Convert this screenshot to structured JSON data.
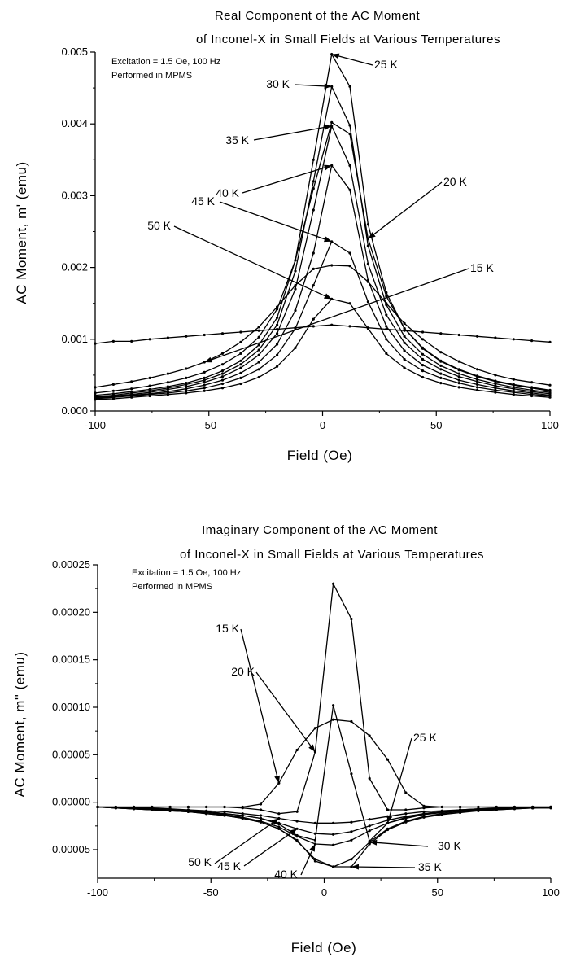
{
  "chart_data": [
    {
      "type": "line",
      "title": "Real Component of the AC Moment",
      "subtitle": "of Inconel-X in Small Fields at Various Temperatures",
      "annotations": [
        "Excitation = 1.5 Oe, 100 Hz",
        "Performed in MPMS"
      ],
      "xlabel": "Field (Oe)",
      "ylabel": "AC Moment, m' (emu)",
      "xlim": [
        -100,
        100
      ],
      "ylim": [
        0,
        0.005
      ],
      "xticks": [
        "-100",
        "-50",
        "0",
        "50",
        "100"
      ],
      "yticks": [
        "0.000",
        "0.001",
        "0.002",
        "0.003",
        "0.004",
        "0.005"
      ],
      "x": [
        -100,
        -92,
        -84,
        -76,
        -68,
        -60,
        -52,
        -44,
        -36,
        -28,
        -20,
        -12,
        -4,
        4,
        12,
        20,
        28,
        36,
        44,
        52,
        60,
        68,
        76,
        84,
        92,
        100
      ],
      "series": [
        {
          "name": "15 K",
          "label": "15 K",
          "values": [
            0.00033,
            0.00037,
            0.00041,
            0.00046,
            0.00052,
            0.00059,
            0.00068,
            0.0008,
            0.00096,
            0.00117,
            0.00145,
            0.00175,
            0.00198,
            0.00203,
            0.00202,
            0.0018,
            0.0015,
            0.00122,
            0.001,
            0.00082,
            0.00069,
            0.00058,
            0.0005,
            0.00044,
            0.0004,
            0.00036
          ]
        },
        {
          "name": "20 K",
          "label": "20 K",
          "values": [
            0.00025,
            0.00028,
            0.00031,
            0.00035,
            0.0004,
            0.00046,
            0.00054,
            0.00065,
            0.0008,
            0.00103,
            0.00142,
            0.0021,
            0.0031,
            0.00402,
            0.00386,
            0.0024,
            0.0016,
            0.00115,
            0.00088,
            0.0007,
            0.00058,
            0.00049,
            0.00042,
            0.00037,
            0.00033,
            0.00029
          ]
        },
        {
          "name": "25 K",
          "label": "25 K",
          "values": [
            0.00022,
            0.00024,
            0.00027,
            0.0003,
            0.00034,
            0.00039,
            0.00046,
            0.00056,
            0.0007,
            0.00092,
            0.0013,
            0.0021,
            0.0035,
            0.00497,
            0.00452,
            0.0026,
            0.00165,
            0.00115,
            0.00087,
            0.00069,
            0.00057,
            0.00048,
            0.00041,
            0.00036,
            0.00032,
            0.00028
          ]
        },
        {
          "name": "30 K",
          "label": "30 K",
          "values": [
            0.0002,
            0.00022,
            0.00025,
            0.00028,
            0.00032,
            0.00037,
            0.00043,
            0.00052,
            0.00065,
            0.00085,
            0.0012,
            0.00195,
            0.0032,
            0.00452,
            0.00398,
            0.0023,
            0.00148,
            0.00104,
            0.00079,
            0.00063,
            0.00052,
            0.00044,
            0.00038,
            0.00033,
            0.00029,
            0.00026
          ]
        },
        {
          "name": "35 K",
          "label": "35 K",
          "values": [
            0.00019,
            0.00021,
            0.00023,
            0.00026,
            0.0003,
            0.00034,
            0.0004,
            0.00048,
            0.0006,
            0.00078,
            0.00108,
            0.0017,
            0.0028,
            0.00397,
            0.00342,
            0.00205,
            0.00134,
            0.00095,
            0.00072,
            0.00058,
            0.00048,
            0.00041,
            0.00035,
            0.00031,
            0.00027,
            0.00024
          ]
        },
        {
          "name": "40 K",
          "label": "40 K",
          "values": [
            0.00018,
            0.0002,
            0.00022,
            0.00024,
            0.00027,
            0.00031,
            0.00036,
            0.00043,
            0.00053,
            0.00068,
            0.00093,
            0.0014,
            0.0022,
            0.00342,
            0.00308,
            0.00182,
            0.00118,
            0.00084,
            0.00064,
            0.00052,
            0.00043,
            0.00037,
            0.00032,
            0.00028,
            0.00025,
            0.00022
          ]
        },
        {
          "name": "45 K",
          "label": "45 K",
          "values": [
            0.00017,
            0.00019,
            0.00021,
            0.00023,
            0.00025,
            0.00028,
            0.00032,
            0.00038,
            0.00046,
            0.00058,
            0.00078,
            0.00115,
            0.00175,
            0.00236,
            0.0022,
            0.00152,
            0.001,
            0.00072,
            0.00056,
            0.00046,
            0.00039,
            0.00033,
            0.00029,
            0.00026,
            0.00023,
            0.00021
          ]
        },
        {
          "name": "50 K",
          "label": "50 K",
          "values": [
            0.00016,
            0.00017,
            0.00019,
            0.00021,
            0.00023,
            0.00025,
            0.00028,
            0.00032,
            0.00038,
            0.00047,
            0.00062,
            0.00088,
            0.00128,
            0.00156,
            0.0015,
            0.00115,
            0.0008,
            0.0006,
            0.00047,
            0.00039,
            0.00033,
            0.00029,
            0.00026,
            0.00023,
            0.00021,
            0.00019
          ]
        },
        {
          "name": "",
          "label": "",
          "values": [
            0.00094,
            0.00097,
            0.00097,
            0.001,
            0.00102,
            0.00104,
            0.00106,
            0.00108,
            0.0011,
            0.00112,
            0.00114,
            0.00116,
            0.00118,
            0.0012,
            0.00118,
            0.00116,
            0.00114,
            0.00112,
            0.0011,
            0.00108,
            0.00106,
            0.00104,
            0.00102,
            0.001,
            0.00098,
            0.00096
          ]
        }
      ],
      "series_colors": [
        "#000000"
      ],
      "grid": false
    },
    {
      "type": "line",
      "title": "Imaginary Component of the AC Moment",
      "subtitle": "of Inconel-X in Small Fields at Various Temperatures",
      "annotations": [
        "Excitation = 1.5 Oe, 100 Hz",
        "Performed in MPMS"
      ],
      "xlabel": "Field (Oe)",
      "ylabel": "AC Moment, m'' (emu)",
      "xlim": [
        -100,
        100
      ],
      "ylim": [
        -8e-05,
        0.00025
      ],
      "xticks": [
        "-100",
        "-50",
        "0",
        "50",
        "100"
      ],
      "yticks": [
        "-0.00005",
        "0.00000",
        "0.00005",
        "0.00010",
        "0.00015",
        "0.00020",
        "0.00025"
      ],
      "x": [
        -100,
        -92,
        -84,
        -76,
        -68,
        -60,
        -52,
        -44,
        -36,
        -28,
        -20,
        -12,
        -4,
        4,
        12,
        20,
        28,
        36,
        44,
        52,
        60,
        68,
        76,
        84,
        92,
        100
      ],
      "series": [
        {
          "name": "15 K",
          "label": "15 K",
          "values": [
            -5e-06,
            -5e-06,
            -5e-06,
            -5e-06,
            -5e-06,
            -5e-06,
            -5e-06,
            -5e-06,
            -5e-06,
            -2e-06,
            2e-05,
            5.5e-05,
            7.8e-05,
            8.7e-05,
            8.5e-05,
            7e-05,
            4.5e-05,
            1e-05,
            -4e-06,
            -5e-06,
            -5e-06,
            -5e-06,
            -5e-06,
            -5e-06,
            -5e-06,
            -5e-06
          ]
        },
        {
          "name": "20 K",
          "label": "20 K",
          "values": [
            -5e-06,
            -5e-06,
            -5e-06,
            -5e-06,
            -5e-06,
            -5e-06,
            -5e-06,
            -5e-06,
            -6e-06,
            -8e-06,
            -1.2e-05,
            -1e-05,
            5.3e-05,
            0.00023,
            0.000193,
            2.5e-05,
            -8e-06,
            -8e-06,
            -6e-06,
            -5e-06,
            -5e-06,
            -5e-06,
            -5e-06,
            -5e-06,
            -5e-06,
            -5e-06
          ]
        },
        {
          "name": "25 K",
          "label": "25 K",
          "values": [
            -5e-06,
            -6e-06,
            -6e-06,
            -7e-06,
            -8e-06,
            -9e-06,
            -1e-05,
            -1.2e-05,
            -1.4e-05,
            -1.7e-05,
            -2.3e-05,
            -3.5e-05,
            -4e-05,
            0.000102,
            3e-05,
            -4.1e-05,
            -2.2e-05,
            -1.6e-05,
            -1.2e-05,
            -1e-05,
            -9e-06,
            -8e-06,
            -7e-06,
            -6e-06,
            -6e-06,
            -5e-06
          ]
        },
        {
          "name": "30 K",
          "label": "30 K",
          "values": [
            -5e-06,
            -6e-06,
            -7e-06,
            -8e-06,
            -9e-06,
            -1e-05,
            -1.2e-05,
            -1.4e-05,
            -1.7e-05,
            -2.1e-05,
            -2.8e-05,
            -4e-05,
            -6.2e-05,
            -6.8e-05,
            -6e-05,
            -4.2e-05,
            -2.8e-05,
            -2e-05,
            -1.5e-05,
            -1.2e-05,
            -1e-05,
            -9e-06,
            -8e-06,
            -7e-06,
            -6e-06,
            -6e-06
          ]
        },
        {
          "name": "35 K",
          "label": "35 K",
          "values": [
            -5e-06,
            -6e-06,
            -7e-06,
            -8e-06,
            -9e-06,
            -1e-05,
            -1.2e-05,
            -1.4e-05,
            -1.7e-05,
            -2.1e-05,
            -2.8e-05,
            -4.1e-05,
            -6e-05,
            -6.8e-05,
            -6.8e-05,
            -4.4e-05,
            -2.9e-05,
            -2.1e-05,
            -1.6e-05,
            -1.3e-05,
            -1.1e-05,
            -9e-06,
            -8e-06,
            -7e-06,
            -6e-06,
            -6e-06
          ]
        },
        {
          "name": "40 K",
          "label": "40 K",
          "values": [
            -5e-06,
            -6e-06,
            -7e-06,
            -8e-06,
            -9e-06,
            -1e-05,
            -1.1e-05,
            -1.3e-05,
            -1.6e-05,
            -2e-05,
            -2.6e-05,
            -3.6e-05,
            -4.4e-05,
            -4.5e-05,
            -4e-05,
            -3e-05,
            -2.2e-05,
            -1.7e-05,
            -1.3e-05,
            -1.1e-05,
            -9e-06,
            -8e-06,
            -7e-06,
            -6e-06,
            -6e-06,
            -5e-06
          ]
        },
        {
          "name": "45 K",
          "label": "45 K",
          "values": [
            -5e-06,
            -6e-06,
            -6e-06,
            -7e-06,
            -8e-06,
            -9e-06,
            -1e-05,
            -1.2e-05,
            -1.4e-05,
            -1.7e-05,
            -2.2e-05,
            -2.8e-05,
            -3.3e-05,
            -3.4e-05,
            -3.1e-05,
            -2.5e-05,
            -1.9e-05,
            -1.5e-05,
            -1.2e-05,
            -1e-05,
            -8e-06,
            -7e-06,
            -7e-06,
            -6e-06,
            -6e-06,
            -5e-06
          ]
        },
        {
          "name": "50 K",
          "label": "50 K",
          "values": [
            -5e-06,
            -5e-06,
            -6e-06,
            -6e-06,
            -7e-06,
            -8e-06,
            -9e-06,
            -1e-05,
            -1.2e-05,
            -1.4e-05,
            -1.7e-05,
            -2e-05,
            -2.2e-05,
            -2.2e-05,
            -2.1e-05,
            -1.8e-05,
            -1.5e-05,
            -1.2e-05,
            -1e-05,
            -9e-06,
            -8e-06,
            -7e-06,
            -6e-06,
            -6e-06,
            -5e-06,
            -5e-06
          ]
        }
      ],
      "series_colors": [
        "#000000"
      ],
      "grid": false
    }
  ]
}
